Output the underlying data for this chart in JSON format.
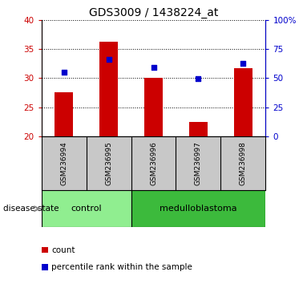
{
  "title": "GDS3009 / 1438224_at",
  "samples": [
    "GSM236994",
    "GSM236995",
    "GSM236996",
    "GSM236997",
    "GSM236998"
  ],
  "bar_values": [
    27.5,
    36.2,
    30.0,
    22.5,
    31.7
  ],
  "dot_values": [
    31.0,
    33.2,
    31.8,
    29.9,
    32.5
  ],
  "bar_color": "#cc0000",
  "dot_color": "#0000cc",
  "ylim_left": [
    20,
    40
  ],
  "ylim_right": [
    0,
    100
  ],
  "yticks_left": [
    20,
    25,
    30,
    35,
    40
  ],
  "yticks_right": [
    0,
    25,
    50,
    75,
    100
  ],
  "ytick_labels_right": [
    "0",
    "25",
    "50",
    "75",
    "100%"
  ],
  "group_control_color": "#90ee90",
  "group_medulloblastoma_color": "#3cba3c",
  "disease_state_label": "disease state",
  "legend_count_label": "count",
  "legend_percentile_label": "percentile rank within the sample",
  "grid_color": "black",
  "background_color": "#ffffff",
  "tick_area_bg": "#c8c8c8",
  "left_axis_color": "#cc0000",
  "right_axis_color": "#0000cc"
}
